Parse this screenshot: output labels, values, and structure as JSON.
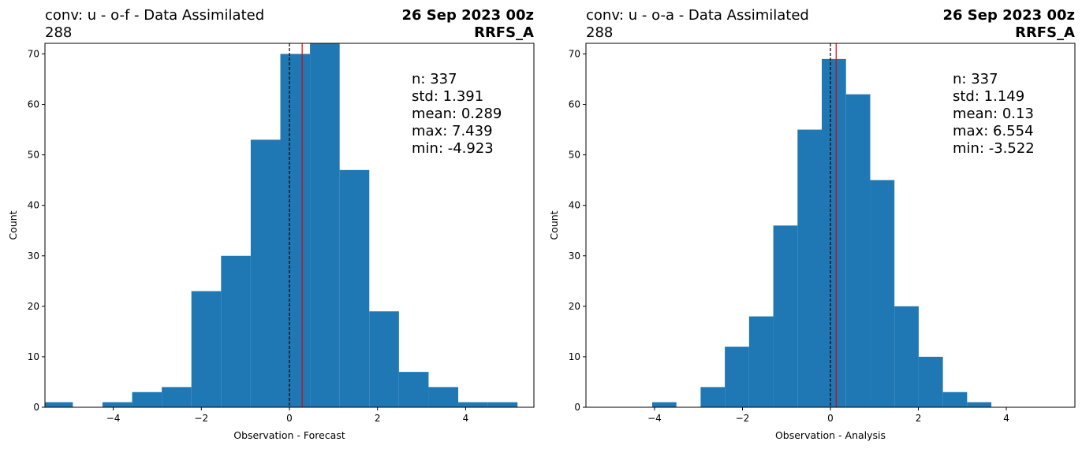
{
  "chart_data": [
    {
      "type": "histogram",
      "title": "conv: u - o-f - Data Assimilated",
      "subtitle": "288",
      "title_right": "26 Sep 2023 00z",
      "subtitle_right": "RRFS_A",
      "xlabel": "Observation - Forecast",
      "ylabel": "Count",
      "bins": [
        -5.59,
        -4.917,
        -4.244,
        -3.571,
        -2.898,
        -2.225,
        -1.552,
        -0.879,
        -0.206,
        0.467,
        1.14,
        1.813,
        2.486,
        3.159,
        3.832,
        4.505,
        5.178
      ],
      "values": [
        1,
        0,
        1,
        3,
        4,
        23,
        30,
        53,
        70,
        73,
        47,
        19,
        7,
        4,
        1,
        1
      ],
      "color": "#1f77b4",
      "xlim": [
        -5.55,
        5.55
      ],
      "ylim": [
        0,
        72.1
      ],
      "xticks": [
        {
          "value": -4,
          "label": "−4"
        },
        {
          "value": -2,
          "label": "−2"
        },
        0,
        2,
        4
      ],
      "yticks": [
        0,
        10,
        20,
        30,
        40,
        50,
        60,
        70
      ],
      "vlines": [
        {
          "x": 0,
          "color": "#000000",
          "dashed": true
        },
        {
          "x": 0.289,
          "color": "#e00000",
          "dashed": false
        }
      ],
      "annotations": [
        "n: 337",
        "std: 1.391",
        "mean: 0.289",
        "max: 7.439",
        "min: -4.923"
      ]
    },
    {
      "type": "histogram",
      "title": "conv: u - o-a - Data Assimilated",
      "subtitle": "288",
      "title_right": "26 Sep 2023 00z",
      "subtitle_right": "RRFS_A",
      "xlabel": "Observation - Analysis",
      "ylabel": "Count",
      "bins": [
        -4.054,
        -3.503,
        -2.952,
        -2.401,
        -1.85,
        -1.299,
        -0.748,
        -0.197,
        0.354,
        0.905,
        1.456,
        2.007,
        2.558,
        3.109,
        3.66
      ],
      "values": [
        1,
        0,
        4,
        12,
        18,
        36,
        55,
        69,
        62,
        45,
        20,
        10,
        3,
        1
      ],
      "color": "#1f77b4",
      "xlim": [
        -5.56,
        5.56
      ],
      "ylim": [
        0,
        72.1
      ],
      "xticks": [
        {
          "value": -4,
          "label": "−4"
        },
        {
          "value": -2,
          "label": "−2"
        },
        0,
        2,
        4
      ],
      "yticks": [
        0,
        10,
        20,
        30,
        40,
        50,
        60,
        70
      ],
      "vlines": [
        {
          "x": 0,
          "color": "#000000",
          "dashed": true
        },
        {
          "x": 0.13,
          "color": "#e00000",
          "dashed": false
        }
      ],
      "annotations": [
        "n: 337",
        "std: 1.149",
        "mean: 0.13",
        "max: 6.554",
        "min: -3.522"
      ]
    }
  ]
}
